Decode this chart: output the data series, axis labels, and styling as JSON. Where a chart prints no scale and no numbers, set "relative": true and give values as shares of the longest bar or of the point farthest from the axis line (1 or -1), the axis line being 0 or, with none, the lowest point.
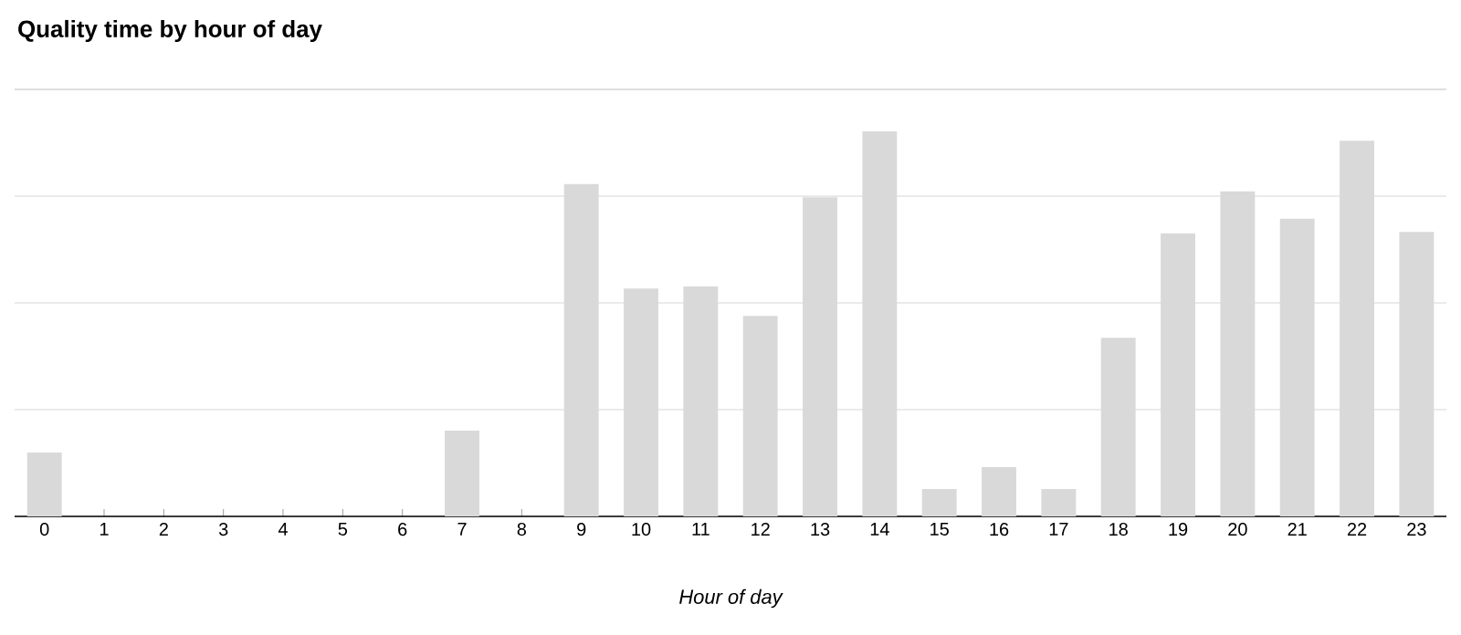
{
  "chart_data": {
    "type": "bar",
    "title": "Quality time by hour of day",
    "xlabel": "Hour of day",
    "categories": [
      "0",
      "1",
      "2",
      "3",
      "4",
      "5",
      "6",
      "7",
      "8",
      "9",
      "10",
      "11",
      "12",
      "13",
      "14",
      "15",
      "16",
      "17",
      "18",
      "19",
      "20",
      "21",
      "22",
      "23"
    ],
    "values": [
      0.166,
      0,
      0,
      0,
      0,
      0,
      0,
      0.223,
      0,
      0.863,
      0.592,
      0.597,
      0.521,
      0.829,
      1,
      0.071,
      0.128,
      0.071,
      0.464,
      0.735,
      0.844,
      0.773,
      0.976,
      0.739
    ],
    "color": "#d9d9d9",
    "relative": true,
    "grid": "y"
  }
}
